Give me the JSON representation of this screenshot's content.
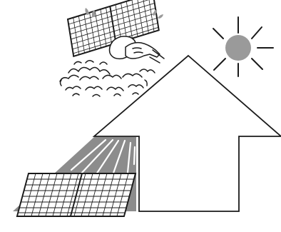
{
  "illustration": {
    "background_color": "#ffffff",
    "line_color": "#1a1a1a",
    "sun_color": "#9a9a9a",
    "shadow_color": "#8c8c8c",
    "icons": [
      "sun-icon",
      "house-arrow-icon",
      "solar-panel-icon",
      "hand-icon",
      "soap-foam-icon",
      "water-drop-icon"
    ]
  }
}
